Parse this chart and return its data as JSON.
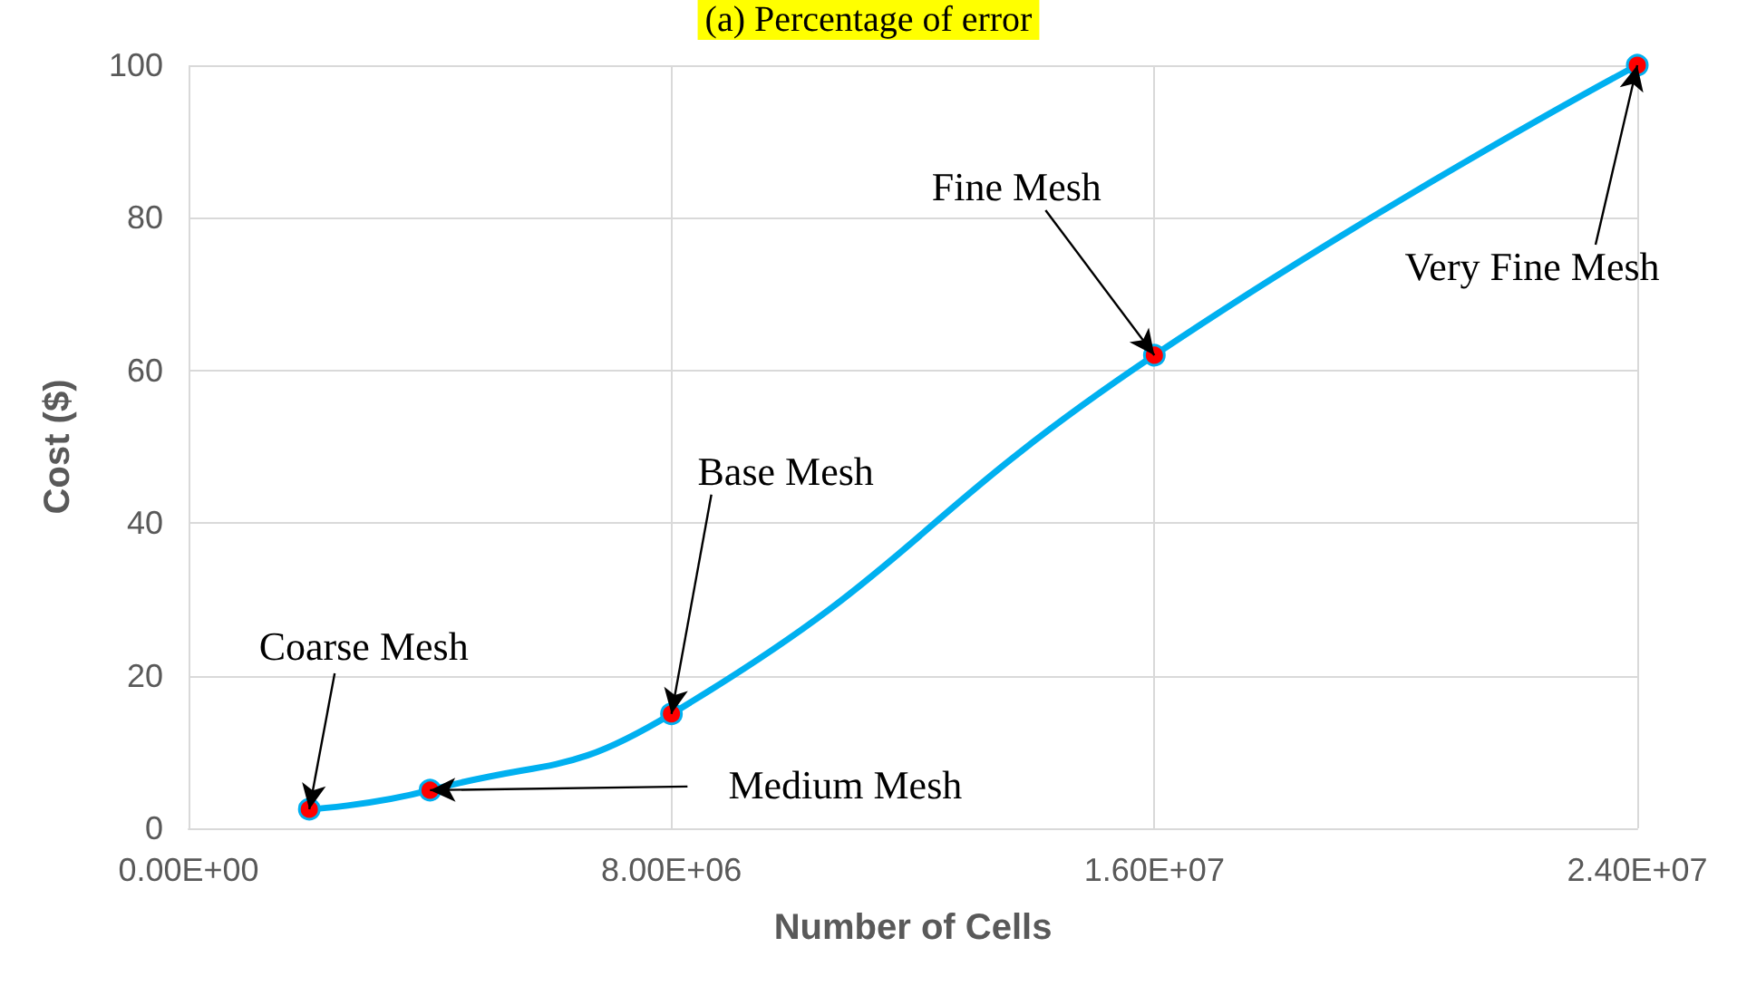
{
  "chart_data": {
    "type": "line",
    "title": "(a) Percentage of error",
    "xlabel": "Number of Cells",
    "ylabel": "Cost ($)",
    "x": [
      2000000,
      4000000,
      8000000,
      16000000,
      24000000
    ],
    "series": [
      {
        "color": "#00b0f0",
        "values": [
          2.5,
          5,
          15,
          62,
          100
        ]
      }
    ],
    "xlim": [
      0,
      24000000
    ],
    "xticks": [
      {
        "value": 0,
        "label": "0.00E+00"
      },
      {
        "value": 8000000,
        "label": "8.00E+06"
      },
      {
        "value": 16000000,
        "label": "1.60E+07"
      },
      {
        "value": 24000000,
        "label": "2.40E+07"
      }
    ],
    "ylim": [
      0,
      100
    ],
    "yticks": [
      0,
      20,
      40,
      60,
      80,
      100
    ],
    "grid": true,
    "marker": "circle",
    "line_style": "solid",
    "annotations": [
      {
        "text": "Coarse Mesh",
        "x": 2000000,
        "y": 2.5
      },
      {
        "text": "Medium Mesh",
        "x": 4000000,
        "y": 5
      },
      {
        "text": "Base Mesh",
        "x": 8000000,
        "y": 15
      },
      {
        "text": "Fine Mesh",
        "x": 16000000,
        "y": 62
      },
      {
        "text": "Very Fine Mesh",
        "x": 24000000,
        "y": 100
      }
    ]
  }
}
